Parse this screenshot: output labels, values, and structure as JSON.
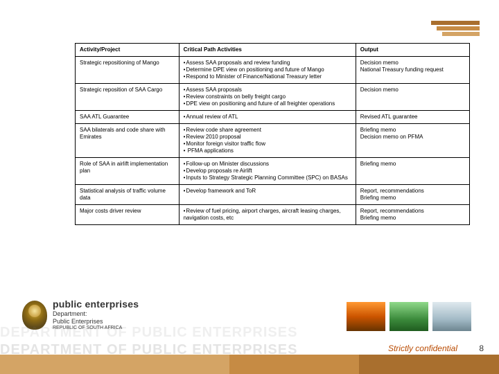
{
  "table": {
    "headers": [
      "Activity/Project",
      "Critical Path Activities",
      "Output"
    ],
    "rows": [
      {
        "activity": "Strategic repositioning of Mango",
        "critical": [
          "Assess SAA  proposals and review funding",
          "Determine DPE  view on positioning and future of Mango",
          "Respond to Minister of Finance/National Treasury letter"
        ],
        "output": "Decision memo\nNational Treasury funding request"
      },
      {
        "activity": "Strategic reposition of SAA Cargo",
        "critical": [
          "Assess SAA  proposals",
          "Review  constraints on belly freight cargo",
          "DPE  view on positioning and future of all freighter operations"
        ],
        "output": "Decision memo"
      },
      {
        "activity": "SAA ATL Guarantee",
        "critical": [
          "Annual review of ATL"
        ],
        "output": "Revised ATL guarantee"
      },
      {
        "activity": "SAA bilaterals and code share with Emirates",
        "critical": [
          "Review code share agreement",
          "Review 2010 proposal",
          "Monitor foreign visitor traffic flow",
          " PFMA applications"
        ],
        "output": "Briefing memo\nDecision memo on PFMA"
      },
      {
        "activity": "Role of SAA in airlift implementation plan",
        "critical": [
          "Follow-up on Minister discussions",
          "Develop proposals re Airlift",
          "Inputs to Strategy Strategic Planning Committee (SPC) on BASAs"
        ],
        "output": "Briefing memo"
      },
      {
        "activity": "Statistical analysis of traffic volume data",
        "critical": [
          "Develop framework and ToR"
        ],
        "output": "Report, recommendations\nBriefing memo"
      },
      {
        "activity": "Major costs driver review",
        "critical": [
          "Review of fuel pricing, airport charges, aircraft leasing charges, navigation costs, etc"
        ],
        "output": "Report, recommendations\nBriefing memo"
      }
    ]
  },
  "logo": {
    "title": "public enterprises",
    "line1": "Department:",
    "line2": "Public Enterprises",
    "line3": "REPUBLIC OF SOUTH AFRICA"
  },
  "watermark_text": "DEPARTMENT OF PUBLIC ENTERPRISES",
  "confidential": "Strictly confidential",
  "page_number": "8",
  "colors": {
    "bar_dark": "#a96f2e",
    "bar_mid": "#c68b44",
    "bar_light": "#d4a465",
    "conf_text": "#b94a00"
  }
}
